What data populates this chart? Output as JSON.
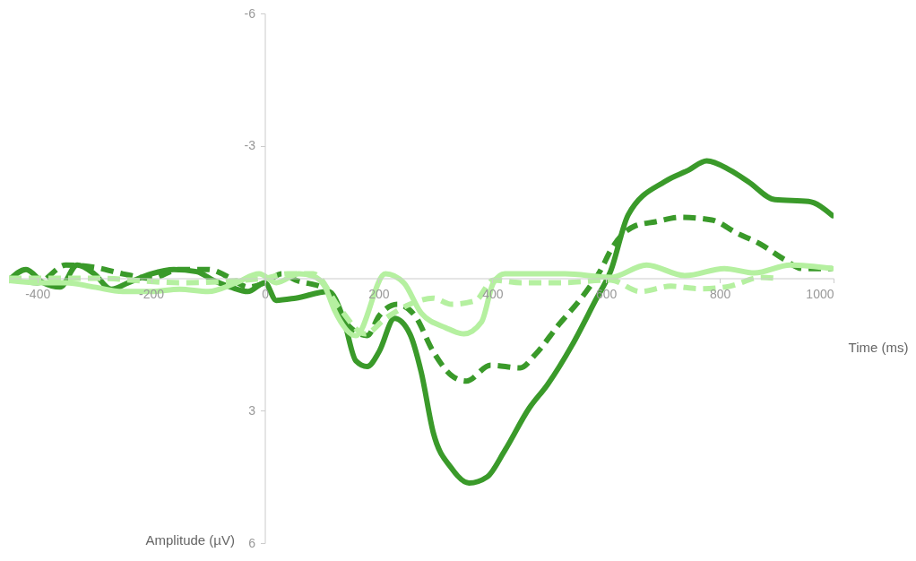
{
  "chart_data": {
    "type": "line",
    "xlabel": "Time (ms)",
    "ylabel": "Amplitude (µV)",
    "xlim": [
      -450,
      1000
    ],
    "xticks": [
      -400,
      -200,
      0,
      200,
      400,
      600,
      800,
      1000
    ],
    "ylim": [
      6,
      -6
    ],
    "yticks": [
      -6,
      -3,
      3,
      6
    ],
    "grid": false,
    "marker": "none",
    "series": [
      {
        "color": "#3a9a2a",
        "line_style": "solid",
        "x": [
          -450,
          -420,
          -390,
          -360,
          -330,
          -300,
          -270,
          -240,
          -200,
          -160,
          -120,
          -90,
          -60,
          -30,
          0,
          20,
          54,
          112,
          138,
          160,
          180,
          201,
          228,
          255,
          275,
          296,
          328,
          359,
          391,
          422,
          465,
          497,
          540,
          581,
          608,
          639,
          703,
          745,
          777,
          818,
          850,
          897,
          956,
          998
        ],
        "values": [
          0.05,
          -0.2,
          0.1,
          0.2,
          -0.3,
          -0.1,
          0.25,
          0.1,
          -0.1,
          -0.2,
          -0.15,
          0.05,
          0.2,
          0.3,
          0.1,
          0.5,
          0.45,
          0.3,
          0.91,
          1.87,
          2.0,
          1.66,
          0.91,
          1.26,
          2.13,
          3.49,
          4.3,
          4.64,
          4.5,
          3.9,
          2.94,
          2.41,
          1.52,
          0.51,
          -0.16,
          -1.44,
          -2.19,
          -2.45,
          -2.66,
          -2.45,
          -2.19,
          -1.78,
          -1.74,
          -1.42
        ]
      },
      {
        "color": "#3a9a2a",
        "line_style": "dashed",
        "x": [
          -450,
          -400,
          -350,
          -300,
          -250,
          -200,
          -150,
          -100,
          -60,
          -30,
          0,
          30,
          54,
          106,
          149,
          180,
          201,
          233,
          264,
          296,
          328,
          354,
          397,
          449,
          476,
          517,
          560,
          592,
          608,
          650,
          687,
          729,
          786,
          829,
          872,
          913,
          945,
          998
        ],
        "values": [
          0.0,
          0.1,
          -0.3,
          -0.25,
          -0.1,
          0.0,
          -0.2,
          -0.2,
          0.0,
          0.2,
          0.1,
          -0.1,
          0.04,
          0.24,
          1.1,
          1.3,
          0.85,
          0.59,
          0.85,
          1.66,
          2.2,
          2.33,
          1.97,
          2.03,
          1.72,
          1.05,
          0.39,
          -0.22,
          -0.63,
          -1.18,
          -1.28,
          -1.38,
          -1.32,
          -1.03,
          -0.77,
          -0.43,
          -0.22,
          -0.22
        ]
      },
      {
        "color": "#b5f0a0",
        "line_style": "solid",
        "x": [
          -450,
          -400,
          -350,
          -300,
          -250,
          -200,
          -150,
          -100,
          -50,
          -10,
          20,
          60,
          85,
          106,
          122,
          160,
          212,
          244,
          275,
          318,
          350,
          381,
          402,
          422,
          465,
          528,
          608,
          671,
          739,
          808,
          861,
          924,
          998
        ],
        "values": [
          0.05,
          0.1,
          0.1,
          0.2,
          0.3,
          0.3,
          0.25,
          0.3,
          0.1,
          -0.1,
          0.1,
          -0.1,
          -0.05,
          0.2,
          0.71,
          1.3,
          -0.1,
          0.1,
          0.79,
          1.12,
          1.26,
          0.99,
          0.1,
          -0.1,
          -0.1,
          -0.1,
          -0.02,
          -0.3,
          -0.06,
          -0.22,
          -0.12,
          -0.3,
          -0.22
        ]
      },
      {
        "color": "#b5f0a0",
        "line_style": "dashed",
        "x": [
          -450,
          -300,
          -150,
          0,
          40,
          85,
          133,
          176,
          212,
          255,
          296,
          328,
          370,
          402,
          450,
          520,
          608,
          660,
          714,
          766,
          818,
          872,
          900
        ],
        "values": [
          0.0,
          0.0,
          0.1,
          0.0,
          -0.1,
          -0.1,
          0.71,
          1.26,
          0.91,
          0.59,
          0.45,
          0.59,
          0.51,
          0.04,
          0.1,
          0.1,
          0.04,
          0.3,
          0.18,
          0.24,
          0.18,
          -0.02,
          0.0
        ]
      }
    ]
  }
}
